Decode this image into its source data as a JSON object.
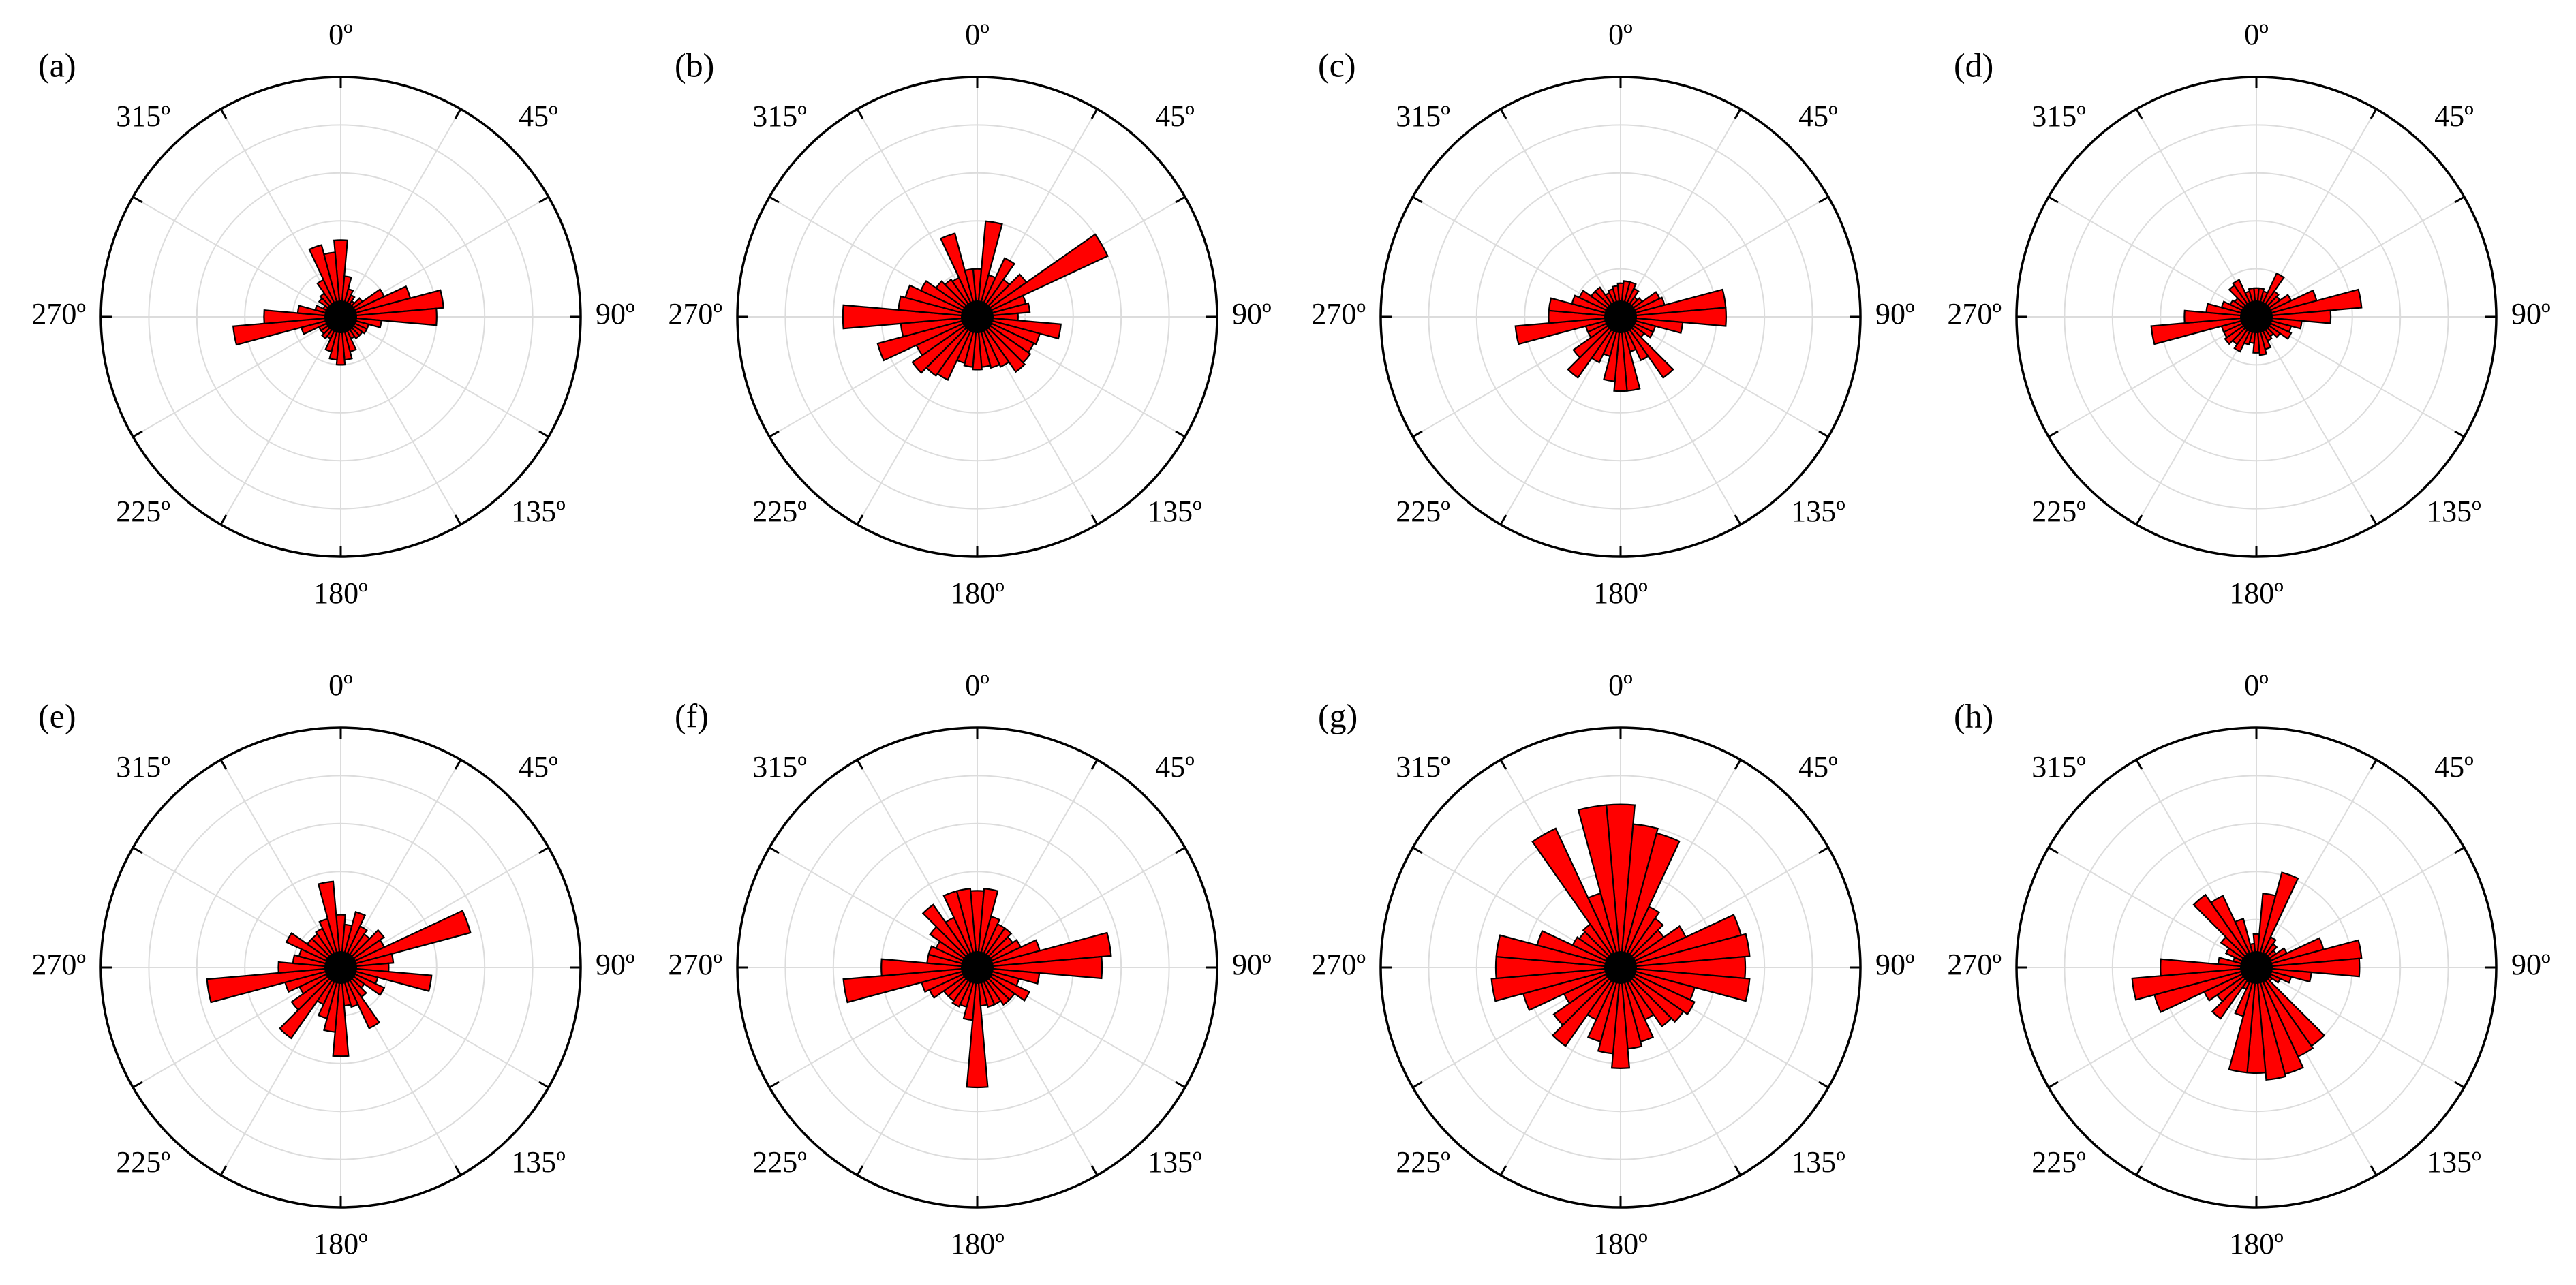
{
  "chart_data": [
    {
      "type": "rose",
      "panel_label": "(a)",
      "angle_labels": [
        "0º",
        "45º",
        "90º",
        "135º",
        "180º",
        "225º",
        "270º",
        "315º"
      ],
      "bin_width_deg": 10,
      "radial_range": [
        0,
        5
      ],
      "radial_rings": 5,
      "grid": true,
      "bar_color": "#ff0000",
      "bin_centers_deg": [
        0,
        10,
        20,
        30,
        40,
        50,
        60,
        70,
        80,
        90,
        100,
        110,
        120,
        130,
        140,
        150,
        160,
        170,
        180,
        190,
        200,
        210,
        220,
        230,
        240,
        250,
        260,
        270,
        280,
        290,
        300,
        310,
        320,
        330,
        340,
        350
      ],
      "values": [
        1.6,
        0.85,
        0.6,
        0.5,
        0.4,
        0.55,
        1.0,
        1.5,
        2.15,
        2.0,
        0.85,
        0.6,
        0.6,
        0.55,
        0.55,
        0.5,
        0.75,
        0.9,
        1.0,
        0.9,
        0.75,
        0.5,
        0.55,
        0.5,
        0.5,
        0.85,
        2.25,
        1.6,
        0.9,
        0.55,
        0.4,
        0.55,
        0.6,
        0.85,
        1.55,
        1.35
      ]
    },
    {
      "type": "rose",
      "panel_label": "(b)",
      "angle_labels": [
        "0º",
        "45º",
        "90º",
        "135º",
        "180º",
        "225º",
        "270º",
        "315º"
      ],
      "bin_width_deg": 10,
      "radial_range": [
        0,
        5
      ],
      "radial_rings": 5,
      "grid": true,
      "bar_color": "#ff0000",
      "bin_centers_deg": [
        0,
        10,
        20,
        30,
        40,
        50,
        60,
        70,
        80,
        90,
        100,
        110,
        120,
        130,
        140,
        150,
        160,
        170,
        180,
        190,
        200,
        210,
        220,
        230,
        240,
        250,
        260,
        270,
        280,
        290,
        300,
        310,
        320,
        330,
        340,
        350
      ],
      "values": [
        1.0,
        2.0,
        0.9,
        1.35,
        0.95,
        1.25,
        3.0,
        1.05,
        1.1,
        0.85,
        1.75,
        1.35,
        1.3,
        1.35,
        1.4,
        1.15,
        1.1,
        1.05,
        1.1,
        1.05,
        1.0,
        1.45,
        1.5,
        1.65,
        1.4,
        2.15,
        1.6,
        2.8,
        1.65,
        1.55,
        1.3,
        1.05,
        0.95,
        0.9,
        1.8,
        1.0
      ]
    },
    {
      "type": "rose",
      "panel_label": "(c)",
      "angle_labels": [
        "0º",
        "45º",
        "90º",
        "135º",
        "180º",
        "225º",
        "270º",
        "315º"
      ],
      "bin_width_deg": 10,
      "radial_range": [
        0,
        5
      ],
      "radial_rings": 5,
      "grid": true,
      "bar_color": "#ff0000",
      "bin_centers_deg": [
        0,
        10,
        20,
        30,
        40,
        50,
        60,
        70,
        80,
        90,
        100,
        110,
        120,
        130,
        140,
        150,
        160,
        170,
        180,
        190,
        200,
        210,
        220,
        230,
        240,
        250,
        260,
        270,
        280,
        290,
        300,
        310,
        320,
        330,
        340,
        350
      ],
      "values": [
        0.7,
        0.75,
        0.75,
        0.65,
        0.5,
        0.55,
        0.9,
        0.95,
        2.2,
        2.2,
        1.3,
        0.75,
        0.75,
        0.6,
        1.55,
        1.0,
        0.75,
        1.55,
        1.55,
        1.35,
        0.85,
        1.05,
        1.55,
        1.2,
        0.75,
        0.75,
        2.2,
        1.5,
        1.5,
        1.05,
        0.95,
        0.75,
        0.75,
        0.55,
        0.6,
        0.65
      ]
    },
    {
      "type": "rose",
      "panel_label": "(d)",
      "angle_labels": [
        "0º",
        "45º",
        "90º",
        "135º",
        "180º",
        "225º",
        "270º",
        "315º"
      ],
      "bin_width_deg": 10,
      "radial_range": [
        0,
        5
      ],
      "radial_rings": 5,
      "grid": true,
      "bar_color": "#ff0000",
      "bin_centers_deg": [
        0,
        10,
        20,
        30,
        40,
        50,
        60,
        70,
        80,
        90,
        100,
        110,
        120,
        130,
        140,
        150,
        160,
        170,
        180,
        190,
        200,
        210,
        220,
        230,
        240,
        250,
        260,
        270,
        280,
        290,
        300,
        310,
        320,
        330,
        340,
        350
      ],
      "values": [
        0.6,
        0.6,
        0.55,
        1.0,
        0.65,
        0.6,
        0.8,
        1.3,
        2.2,
        1.55,
        0.95,
        0.75,
        0.8,
        0.6,
        0.5,
        0.55,
        0.7,
        0.8,
        0.75,
        0.55,
        0.6,
        0.8,
        0.7,
        0.8,
        0.75,
        0.75,
        2.2,
        1.5,
        1.05,
        0.75,
        0.6,
        0.55,
        0.8,
        0.85,
        0.55,
        0.6
      ]
    },
    {
      "type": "rose",
      "panel_label": "(e)",
      "angle_labels": [
        "0º",
        "45º",
        "90º",
        "135º",
        "180º",
        "225º",
        "270º",
        "315º"
      ],
      "bin_width_deg": 10,
      "radial_range": [
        0,
        5
      ],
      "radial_rings": 5,
      "grid": true,
      "bar_color": "#ff0000",
      "bin_centers_deg": [
        0,
        10,
        20,
        30,
        40,
        50,
        60,
        70,
        80,
        90,
        100,
        110,
        120,
        130,
        140,
        150,
        160,
        170,
        180,
        190,
        200,
        210,
        220,
        230,
        240,
        250,
        260,
        270,
        280,
        290,
        300,
        310,
        320,
        330,
        340,
        350
      ],
      "values": [
        1.1,
        0.9,
        1.2,
        0.95,
        0.85,
        1.1,
        1.0,
        2.8,
        1.1,
        1.0,
        1.9,
        0.8,
        1.0,
        0.6,
        0.75,
        1.4,
        0.85,
        0.8,
        1.85,
        1.35,
        1.1,
        0.85,
        1.8,
        1.25,
        0.95,
        1.2,
        2.8,
        1.3,
        1.0,
        0.9,
        1.25,
        0.85,
        0.85,
        0.9,
        1.05,
        1.8
      ]
    },
    {
      "type": "rose",
      "panel_label": "(f)",
      "angle_labels": [
        "0º",
        "45º",
        "90º",
        "135º",
        "180º",
        "225º",
        "270º",
        "315º"
      ],
      "bin_width_deg": 10,
      "radial_range": [
        0,
        5
      ],
      "radial_rings": 5,
      "grid": true,
      "bar_color": "#ff0000",
      "bin_centers_deg": [
        0,
        10,
        20,
        30,
        40,
        50,
        60,
        70,
        80,
        90,
        100,
        110,
        120,
        130,
        140,
        150,
        160,
        170,
        180,
        190,
        200,
        210,
        220,
        230,
        240,
        250,
        260,
        270,
        280,
        290,
        300,
        310,
        320,
        330,
        340,
        350
      ],
      "values": [
        1.6,
        1.65,
        1.1,
        1.0,
        1.0,
        0.9,
        1.0,
        1.35,
        2.8,
        2.6,
        1.3,
        0.9,
        1.2,
        0.95,
        0.95,
        0.85,
        0.85,
        0.8,
        2.5,
        1.1,
        0.85,
        0.9,
        0.85,
        0.85,
        1.1,
        1.2,
        2.8,
        2.0,
        1.05,
        1.05,
        0.95,
        1.2,
        1.6,
        1.15,
        1.65,
        1.65
      ]
    },
    {
      "type": "rose",
      "panel_label": "(g)",
      "angle_labels": [
        "0º",
        "45º",
        "90º",
        "135º",
        "180º",
        "225º",
        "270º",
        "315º"
      ],
      "bin_width_deg": 10,
      "radial_range": [
        0,
        5
      ],
      "radial_rings": 5,
      "grid": true,
      "bar_color": "#ff0000",
      "bin_centers_deg": [
        0,
        10,
        20,
        30,
        40,
        50,
        60,
        70,
        80,
        90,
        100,
        110,
        120,
        130,
        140,
        150,
        160,
        170,
        180,
        190,
        200,
        210,
        220,
        230,
        240,
        250,
        260,
        270,
        280,
        290,
        300,
        310,
        320,
        330,
        340,
        350
      ],
      "values": [
        3.4,
        3.0,
        2.9,
        1.4,
        1.25,
        1.1,
        1.5,
        2.6,
        2.7,
        2.6,
        2.7,
        1.6,
        1.7,
        1.6,
        1.5,
        1.2,
        1.6,
        1.7,
        2.1,
        1.8,
        1.6,
        1.2,
        2.0,
        1.7,
        1.3,
        2.1,
        2.7,
        2.6,
        2.6,
        1.8,
        1.1,
        1.05,
        1.1,
        3.2,
        1.6,
        3.4
      ]
    },
    {
      "type": "rose",
      "panel_label": "(h)",
      "angle_labels": [
        "0º",
        "45º",
        "90º",
        "135º",
        "180º",
        "225º",
        "270º",
        "315º"
      ],
      "bin_width_deg": 10,
      "radial_range": [
        0,
        5
      ],
      "radial_rings": 5,
      "grid": true,
      "bar_color": "#ff0000",
      "bin_centers_deg": [
        0,
        10,
        20,
        30,
        40,
        50,
        60,
        70,
        80,
        90,
        100,
        110,
        120,
        130,
        140,
        150,
        160,
        170,
        180,
        190,
        200,
        210,
        220,
        230,
        240,
        250,
        260,
        270,
        280,
        290,
        300,
        310,
        320,
        330,
        340,
        350
      ],
      "values": [
        0.7,
        1.55,
        2.05,
        0.7,
        0.6,
        0.5,
        0.7,
        1.45,
        2.2,
        2.15,
        1.15,
        0.75,
        0.55,
        0.4,
        2.0,
        2.05,
        2.3,
        2.35,
        2.2,
        2.2,
        1.05,
        0.5,
        1.3,
        1.0,
        1.2,
        2.2,
        2.6,
        2.0,
        0.8,
        0.5,
        0.7,
        0.9,
        1.85,
        1.65,
        1.05,
        0.5
      ]
    }
  ]
}
